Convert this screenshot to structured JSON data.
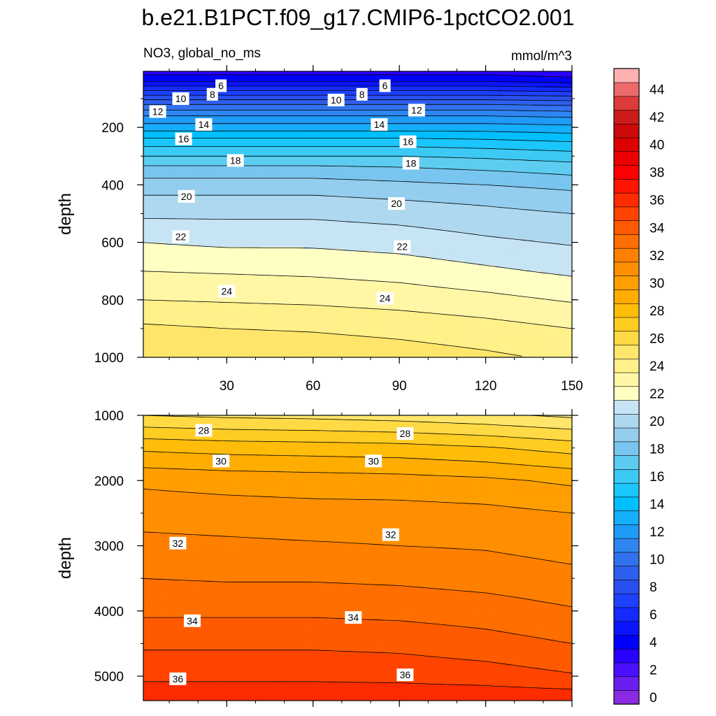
{
  "title": "b.e21.B1PCT.f09_g17.CMIP6-1pctCO2.001",
  "left_subtitle": "NO3, global_no_ms",
  "right_subtitle": "mmol/m^3",
  "colors": {
    "levels_start": 0,
    "levels_step": 1,
    "palette": [
      "#8a2be2",
      "#6a1ff0",
      "#4b0fff",
      "#2a00ff",
      "#0000ff",
      "#0a14ff",
      "#142aff",
      "#1e40ff",
      "#2850f0",
      "#2e5fee",
      "#3372ee",
      "#2f86f2",
      "#1f9af7",
      "#14aefa",
      "#00bfff",
      "#1ac6fb",
      "#3ccaf5",
      "#5ccdf0",
      "#78c6ef",
      "#94cdee",
      "#aed8f0",
      "#c6e4f4",
      "#ffffc4",
      "#fff7a6",
      "#fff089",
      "#ffe66a",
      "#ffda45",
      "#ffcc22",
      "#ffbd0a",
      "#ffad00",
      "#ff9e00",
      "#ff8f00",
      "#ff7f00",
      "#ff6e00",
      "#ff5a00",
      "#ff4400",
      "#ff2c00",
      "#ff1500",
      "#ff0000",
      "#ee0000",
      "#dd0000",
      "#cc0a0a",
      "#cc1c1c",
      "#dd3a3a",
      "#ee6a6a",
      "#ffb0b0"
    ]
  },
  "chart_data": [
    {
      "type": "contour",
      "panel": "top",
      "title": "b.e21.B1PCT.f09_g17.CMIP6-1pctCO2.001",
      "left_label": "NO3, global_no_ms",
      "right_label": "mmol/m^3",
      "xlabel": "",
      "ylabel": "depth",
      "xlim": [
        1,
        150
      ],
      "ylim": [
        1000,
        5
      ],
      "xticks": [
        30,
        60,
        90,
        120,
        150
      ],
      "yticks": [
        200,
        400,
        600,
        800,
        1000
      ],
      "x": [
        0,
        30,
        60,
        90,
        120,
        150
      ],
      "depth_ref": [
        5,
        40,
        80,
        120,
        160,
        200,
        250,
        300,
        350,
        420,
        500,
        600,
        700,
        800,
        900,
        1000
      ],
      "value_at_x": [
        [
          3.5,
          5.0,
          7.5,
          10.0,
          12.0,
          13.5,
          15.5,
          17.0,
          18.5,
          19.8,
          20.8,
          22.0,
          23.0,
          24.0,
          25.2,
          26.0
        ],
        [
          3.5,
          5.0,
          7.5,
          10.0,
          12.0,
          13.5,
          15.5,
          17.0,
          18.5,
          19.8,
          20.8,
          21.8,
          22.9,
          23.9,
          25.0,
          25.8
        ],
        [
          3.5,
          5.0,
          7.5,
          10.0,
          12.0,
          13.5,
          15.5,
          17.0,
          18.5,
          19.8,
          20.8,
          21.8,
          22.8,
          23.8,
          24.9,
          25.7
        ],
        [
          3.5,
          5.0,
          7.5,
          10.0,
          12.0,
          13.5,
          15.5,
          17.0,
          18.3,
          19.6,
          20.6,
          21.6,
          22.6,
          23.6,
          24.7,
          25.5
        ],
        [
          3.5,
          5.0,
          7.5,
          10.0,
          12.0,
          13.5,
          15.3,
          16.8,
          18.0,
          19.4,
          20.3,
          21.2,
          22.2,
          23.3,
          24.4,
          25.2
        ],
        [
          3.0,
          4.7,
          7.3,
          9.8,
          11.8,
          13.3,
          15.0,
          16.5,
          17.7,
          19.0,
          20.0,
          20.9,
          21.8,
          22.9,
          24.0,
          24.8
        ]
      ],
      "contour_labels": [
        {
          "value": "6",
          "x": 28,
          "depth": 55
        },
        {
          "value": "6",
          "x": 85,
          "depth": 55
        },
        {
          "value": "8",
          "x": 25,
          "depth": 85
        },
        {
          "value": "8",
          "x": 77,
          "depth": 85
        },
        {
          "value": "10",
          "x": 14,
          "depth": 100
        },
        {
          "value": "10",
          "x": 68,
          "depth": 105
        },
        {
          "value": "12",
          "x": 6,
          "depth": 145
        },
        {
          "value": "12",
          "x": 96,
          "depth": 140
        },
        {
          "value": "14",
          "x": 22,
          "depth": 190
        },
        {
          "value": "14",
          "x": 83,
          "depth": 190
        },
        {
          "value": "16",
          "x": 15,
          "depth": 240
        },
        {
          "value": "16",
          "x": 93,
          "depth": 250
        },
        {
          "value": "18",
          "x": 33,
          "depth": 315
        },
        {
          "value": "18",
          "x": 94,
          "depth": 325
        },
        {
          "value": "20",
          "x": 16,
          "depth": 440
        },
        {
          "value": "20",
          "x": 89,
          "depth": 465
        },
        {
          "value": "22",
          "x": 14,
          "depth": 580
        },
        {
          "value": "22",
          "x": 91,
          "depth": 615
        },
        {
          "value": "24",
          "x": 30,
          "depth": 770
        },
        {
          "value": "24",
          "x": 85,
          "depth": 795
        }
      ]
    },
    {
      "type": "contour",
      "panel": "bottom",
      "xlabel": "",
      "ylabel": "depth",
      "xlim": [
        1,
        150
      ],
      "ylim": [
        5375,
        1000
      ],
      "xticks": [
        30,
        60,
        90,
        120,
        150
      ],
      "yticks": [
        1000,
        2000,
        3000,
        4000,
        5000
      ],
      "x": [
        0,
        30,
        60,
        90,
        120,
        150
      ],
      "depth_ref": [
        1000,
        1500,
        2000,
        2500,
        3000,
        3500,
        4000,
        4500,
        5000,
        5375
      ],
      "value_at_x": [
        [
          26.0,
          28.8,
          30.8,
          31.6,
          32.3,
          33.0,
          33.8,
          34.8,
          35.8,
          36.7
        ],
        [
          25.8,
          28.6,
          30.6,
          31.5,
          32.2,
          32.9,
          33.8,
          34.8,
          35.8,
          36.7
        ],
        [
          25.7,
          28.5,
          30.5,
          31.4,
          32.1,
          32.9,
          33.8,
          34.8,
          35.8,
          36.7
        ],
        [
          25.5,
          28.4,
          30.4,
          31.4,
          32.0,
          32.8,
          33.7,
          34.7,
          35.7,
          36.8
        ],
        [
          25.2,
          28.1,
          30.2,
          31.3,
          31.9,
          32.6,
          33.5,
          34.4,
          35.5,
          36.8
        ],
        [
          24.8,
          27.6,
          29.8,
          31.0,
          31.6,
          32.3,
          33.1,
          34.0,
          35.1,
          36.8
        ]
      ],
      "contour_labels": [
        {
          "value": "28",
          "x": 22,
          "depth": 1230
        },
        {
          "value": "28",
          "x": 92,
          "depth": 1280
        },
        {
          "value": "30",
          "x": 28,
          "depth": 1700
        },
        {
          "value": "30",
          "x": 81,
          "depth": 1700
        },
        {
          "value": "32",
          "x": 13,
          "depth": 2960
        },
        {
          "value": "32",
          "x": 87,
          "depth": 2830
        },
        {
          "value": "34",
          "x": 18,
          "depth": 4150
        },
        {
          "value": "34",
          "x": 74,
          "depth": 4100
        },
        {
          "value": "36",
          "x": 13,
          "depth": 5040
        },
        {
          "value": "36",
          "x": 92,
          "depth": 4980
        }
      ]
    },
    {
      "type": "colorbar",
      "orientation": "vertical",
      "min": 0,
      "max": 46,
      "step": 1,
      "tick_labels": [
        "0",
        "2",
        "4",
        "6",
        "8",
        "10",
        "12",
        "14",
        "16",
        "18",
        "20",
        "22",
        "24",
        "26",
        "28",
        "30",
        "32",
        "34",
        "36",
        "38",
        "40",
        "42",
        "44"
      ]
    }
  ]
}
